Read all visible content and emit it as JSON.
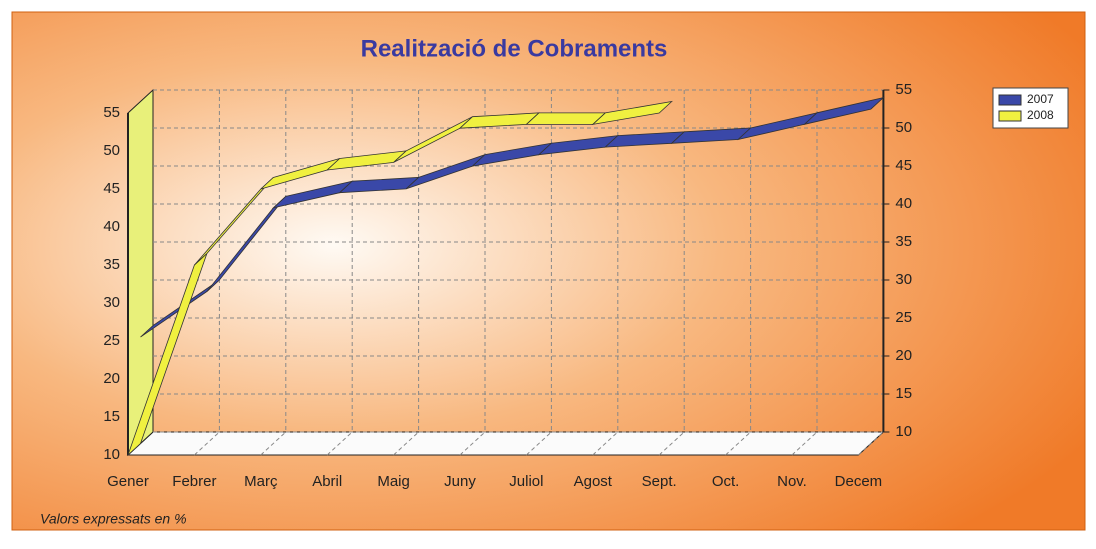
{
  "chart_data": {
    "type": "line3d",
    "title": "Realització de Cobraments",
    "note": "Valors expressats en %",
    "categories": [
      "Gener",
      "Febrer",
      "Març",
      "Abril",
      "Maig",
      "Juny",
      "Juliol",
      "Agost",
      "Sept.",
      "Oct.",
      "Nov.",
      "Decem"
    ],
    "series": [
      {
        "name": "2007",
        "color": "#3a48a8",
        "values": [
          24,
          30,
          41,
          43,
          43.5,
          46.5,
          48,
          49,
          49.5,
          50,
          52,
          54
        ]
      },
      {
        "name": "2008",
        "color": "#f0f040",
        "values": [
          10,
          35,
          45,
          47.5,
          48.5,
          53,
          53.5,
          53.5,
          55,
          null,
          null,
          null
        ]
      }
    ],
    "ylim": [
      10,
      55
    ],
    "yticks": [
      10,
      15,
      20,
      25,
      30,
      35,
      40,
      45,
      50,
      55
    ],
    "grid": true,
    "legend": "top-right"
  }
}
